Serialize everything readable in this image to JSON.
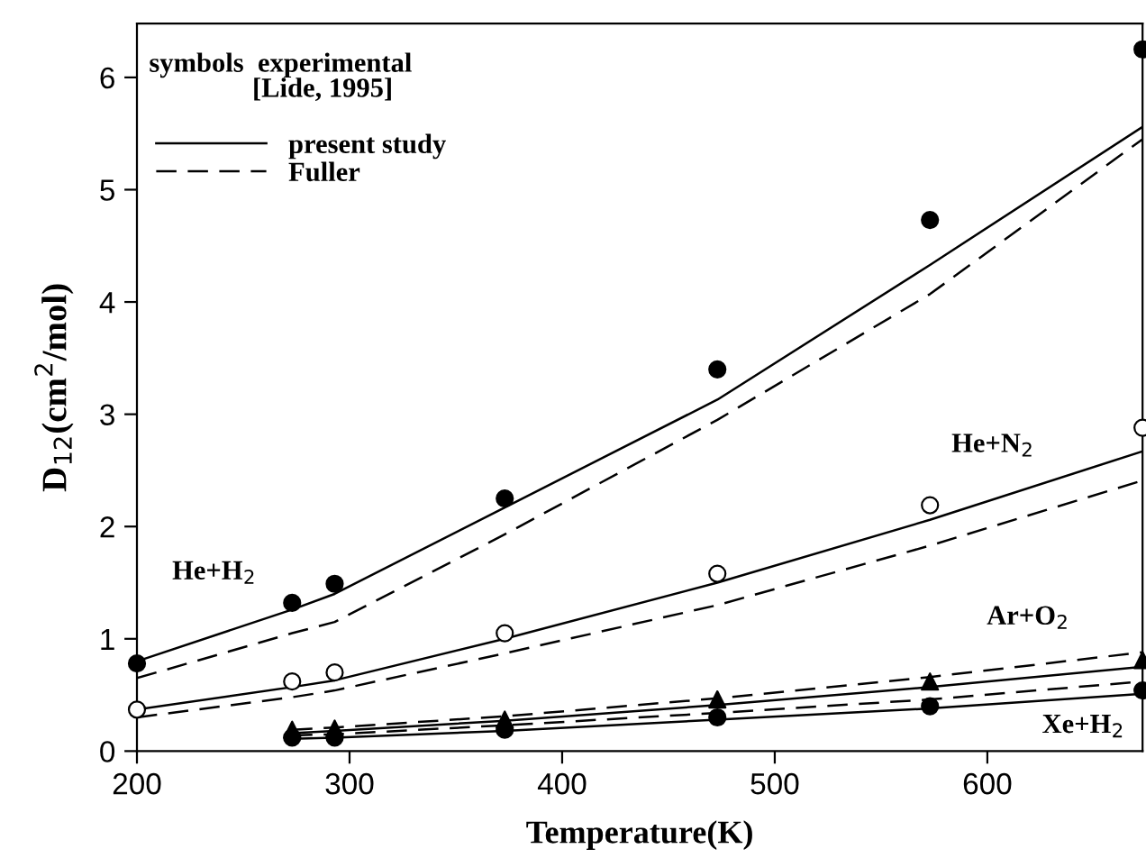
{
  "chart_data": {
    "type": "line",
    "xlabel": "Temperature(K)",
    "ylabel": "D$_{12}$(cm$^{2}$/mol)",
    "xlim": [
      200,
      673
    ],
    "ylim": [
      0,
      6.48
    ],
    "xticks": [
      200,
      300,
      400,
      500,
      600
    ],
    "yticks": [
      0,
      1,
      2,
      3,
      4,
      5,
      6
    ],
    "grid": false,
    "legend": "top left",
    "annotations": [
      "symbols  experimental\n               [Lide, 1995]",
      "He+H$_{2}$",
      "He+N$_{2}$",
      "Ar+O$_{2}$",
      "Xe+H$_{2}$"
    ],
    "series": [
      {
        "type": "scatter",
        "marker": "circle",
        "color": "#000000",
        "x": [
          200,
          273,
          293,
          373,
          473,
          573,
          673
        ],
        "values": [
          0.78,
          1.32,
          1.49,
          2.25,
          3.4,
          4.73,
          6.25
        ]
      },
      {
        "type": "scatter",
        "marker": "circle",
        "color": "#ffffff",
        "x": [
          200,
          273,
          293,
          373,
          473,
          573,
          673
        ],
        "values": [
          0.37,
          0.62,
          0.7,
          1.05,
          1.58,
          2.19,
          2.88
        ]
      },
      {
        "type": "scatter",
        "marker": "triangle",
        "color": "#000000",
        "x": [
          273,
          293,
          373,
          473,
          573,
          673
        ],
        "values": [
          0.19,
          0.2,
          0.28,
          0.46,
          0.62,
          0.81
        ]
      },
      {
        "type": "scatter",
        "marker": "circle",
        "color": "#000000",
        "x": [
          273,
          293,
          373,
          473,
          573,
          673
        ],
        "values": [
          0.12,
          0.12,
          0.19,
          0.3,
          0.4,
          0.54
        ]
      },
      {
        "name": "present study",
        "line_style": "solid",
        "color": "#000000",
        "x": [
          200,
          273,
          293,
          373,
          473,
          573,
          673
        ],
        "values": [
          0.8,
          1.26,
          1.4,
          2.17,
          3.13,
          4.33,
          5.56
        ]
      },
      {
        "line_style": "solid",
        "color": "#000000",
        "x": [
          200,
          273,
          293,
          373,
          473,
          573,
          673
        ],
        "values": [
          0.37,
          0.57,
          0.63,
          1.0,
          1.5,
          2.06,
          2.67
        ]
      },
      {
        "line_style": "solid",
        "color": "#000000",
        "x": [
          273,
          293,
          373,
          473,
          573,
          673
        ],
        "values": [
          0.16,
          0.18,
          0.27,
          0.41,
          0.57,
          0.75
        ]
      },
      {
        "line_style": "solid",
        "color": "#000000",
        "x": [
          273,
          293,
          373,
          473,
          573,
          673
        ],
        "values": [
          0.11,
          0.12,
          0.18,
          0.28,
          0.38,
          0.51
        ]
      },
      {
        "name": "Fuller",
        "line_style": "dashed",
        "color": "#000000",
        "x": [
          200,
          273,
          293,
          373,
          473,
          573,
          673
        ],
        "values": [
          0.65,
          1.05,
          1.15,
          1.93,
          2.95,
          4.07,
          5.45
        ]
      },
      {
        "line_style": "dashed",
        "color": "#000000",
        "x": [
          200,
          273,
          293,
          373,
          473,
          573,
          673
        ],
        "values": [
          0.3,
          0.48,
          0.54,
          0.87,
          1.3,
          1.83,
          2.41
        ]
      },
      {
        "line_style": "dashed",
        "color": "#000000",
        "x": [
          273,
          293,
          373,
          473,
          573,
          673
        ],
        "values": [
          0.19,
          0.21,
          0.31,
          0.47,
          0.66,
          0.88
        ]
      },
      {
        "line_style": "dashed",
        "color": "#000000",
        "x": [
          273,
          293,
          373,
          473,
          573,
          673
        ],
        "values": [
          0.14,
          0.15,
          0.23,
          0.34,
          0.46,
          0.62
        ]
      }
    ]
  }
}
